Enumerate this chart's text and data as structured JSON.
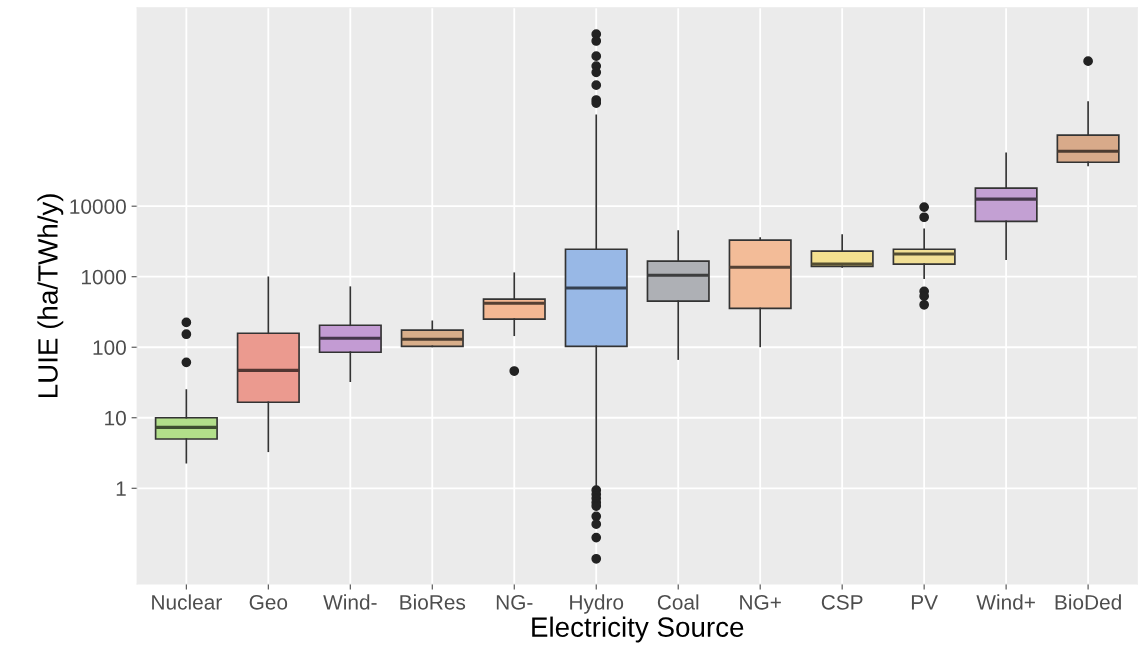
{
  "chart_data": {
    "type": "box",
    "xlabel": "Electricity Source",
    "ylabel": "LUIE (ha/TWh/y)",
    "log": "y",
    "grid": true,
    "categories": [
      "Nuclear",
      "Geo",
      "Wind-",
      "BioRes",
      "NG-",
      "Hydro",
      "Coal",
      "NG+",
      "CSP",
      "PV",
      "Wind+",
      "BioDed"
    ],
    "colors": [
      "#b2df8a",
      "#eb9a8f",
      "#c39bd3",
      "#d8ae8a",
      "#f4b893",
      "#98b8e6",
      "#aeb0b5",
      "#f3bc98",
      "#f3e08f",
      "#f1df95",
      "#c3a0d3",
      "#d8aa8a"
    ],
    "ylim": [
      0.044,
      6500000
    ],
    "yticks": [
      1,
      10,
      100,
      1000,
      10000
    ],
    "boxes": [
      {
        "low": 2.3,
        "q1": 5.0,
        "median": 7.3,
        "q3": 10,
        "high": 24.6,
        "outliers": [
          225,
          153,
          61
        ]
      },
      {
        "low": 3.35,
        "q1": 16.6,
        "median": 47,
        "q3": 158,
        "high": 980
      },
      {
        "low": 33,
        "q1": 85,
        "median": 134,
        "q3": 205,
        "high": 710
      },
      {
        "low": 103,
        "q1": 103,
        "median": 130,
        "q3": 175,
        "high": 233
      },
      {
        "low": 148,
        "q1": 250,
        "median": 420,
        "q3": 480,
        "high": 1120,
        "outliers": [
          46
        ]
      },
      {
        "low": 1.0,
        "q1": 103,
        "median": 690,
        "q3": 2450,
        "high": 195000,
        "outliers": [
          2750000,
          2200000,
          1340000,
          970000,
          790000,
          520000,
          320000,
          290000,
          0.94,
          0.82,
          0.72,
          0.63,
          0.56,
          0.4,
          0.31,
          0.2,
          0.1
        ]
      },
      {
        "low": 68,
        "q1": 450,
        "median": 1050,
        "q3": 1660,
        "high": 4450
      },
      {
        "low": 103,
        "q1": 355,
        "median": 1360,
        "q3": 3310,
        "high": 3530
      },
      {
        "low": 1380,
        "q1": 1400,
        "median": 1510,
        "q3": 2300,
        "high": 3900
      },
      {
        "low": 950,
        "q1": 1510,
        "median": 2100,
        "q3": 2450,
        "high": 4700,
        "outliers": [
          9700,
          6970,
          620,
          530,
          400
        ]
      },
      {
        "low": 1780,
        "q1": 6100,
        "median": 12600,
        "q3": 18000,
        "high": 56000
      },
      {
        "low": 38000,
        "q1": 42000,
        "median": 60000,
        "q3": 102000,
        "high": 300000,
        "outliers": [
          1140000
        ]
      }
    ]
  }
}
